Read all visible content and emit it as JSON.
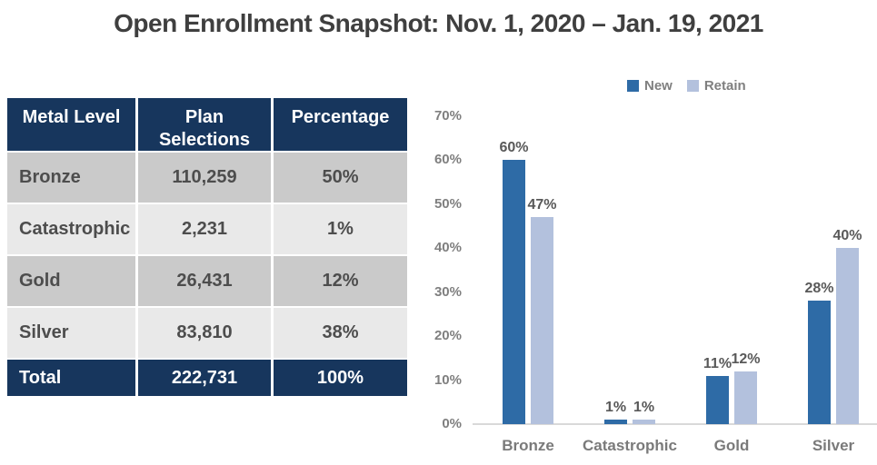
{
  "title": "Open Enrollment Snapshot: Nov. 1, 2020 – Jan. 19, 2021",
  "colors": {
    "header_navy": "#17365D",
    "row_dark_gray": "#CACACA",
    "row_light_gray": "#E9E9E9",
    "table_text": "#4D4D4D",
    "title_text": "#3F3F3F",
    "bar_new": "#2E6BA6",
    "bar_retain": "#B3C1DD",
    "axis_text": "#7F7F7F",
    "data_label_text": "#595959",
    "axis_line": "#D9D9D9"
  },
  "table": {
    "headers": [
      "Metal Level",
      "Plan Selections",
      "Percentage"
    ],
    "rows": [
      {
        "cells": [
          "Bronze",
          "110,259",
          "50%"
        ]
      },
      {
        "cells": [
          "Catastrophic",
          "2,231",
          "1%"
        ]
      },
      {
        "cells": [
          "Gold",
          "26,431",
          "12%"
        ]
      },
      {
        "cells": [
          "Silver",
          "83,810",
          "38%"
        ]
      }
    ],
    "total": {
      "cells": [
        "Total",
        "222,731",
        "100%"
      ]
    }
  },
  "chart_data": {
    "type": "bar",
    "categories": [
      "Bronze",
      "Catastrophic",
      "Gold",
      "Silver"
    ],
    "series": [
      {
        "name": "New",
        "color": "#2E6BA6",
        "values": [
          60,
          1,
          11,
          28
        ]
      },
      {
        "name": "Retain",
        "color": "#B3C1DD",
        "values": [
          47,
          1,
          12,
          40
        ]
      }
    ],
    "value_suffix": "%",
    "ylabel": "",
    "xlabel": "",
    "ylim": [
      0,
      70
    ],
    "ytick_step": 10,
    "grid": false,
    "legend_position": "top",
    "data_labels": true
  }
}
